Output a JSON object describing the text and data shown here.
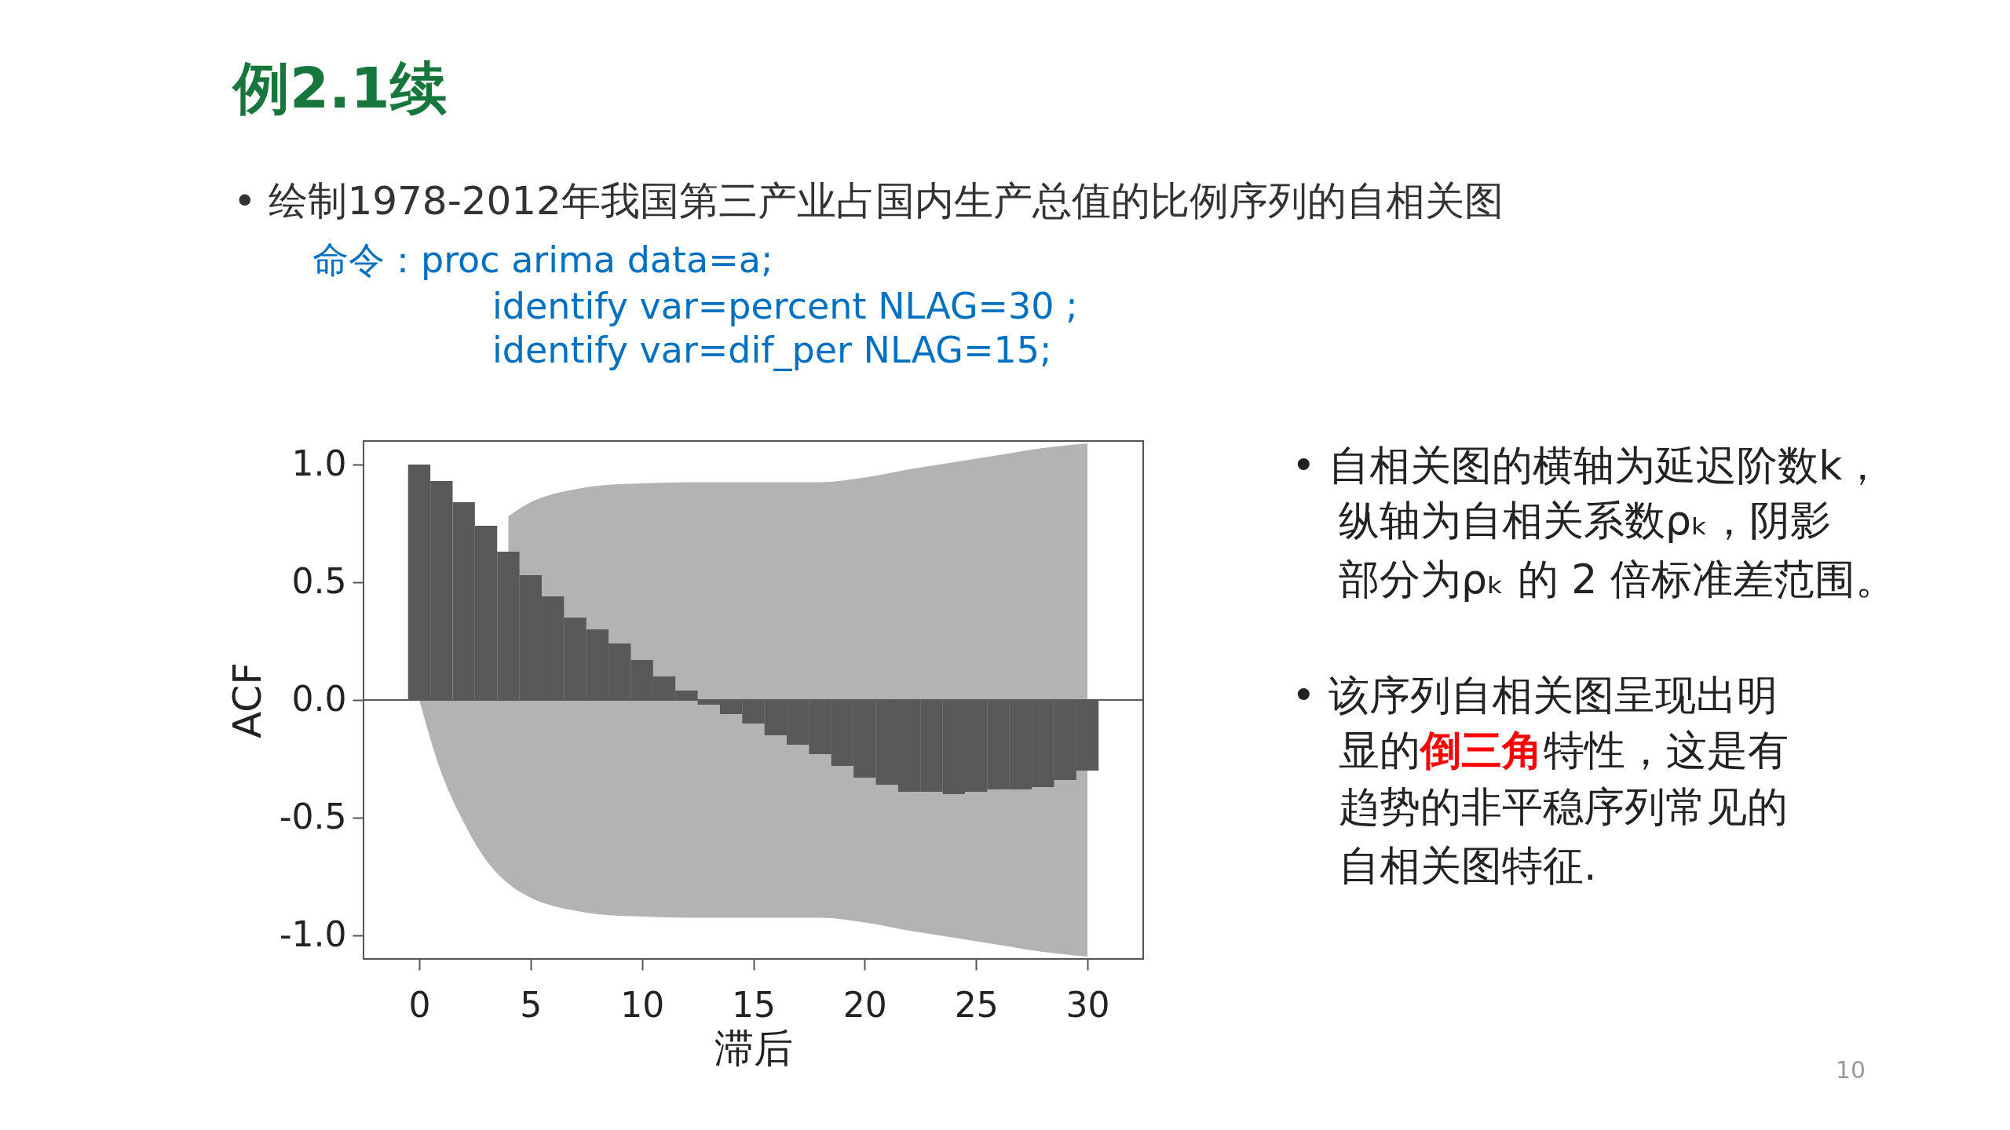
{
  "chart_data": {
    "type": "bar",
    "title": "例2.1续",
    "xlabel": "滞后",
    "ylabel": "ACF",
    "x": [
      0,
      1,
      2,
      3,
      4,
      5,
      6,
      7,
      8,
      9,
      10,
      11,
      12,
      13,
      14,
      15,
      16,
      17,
      18,
      19,
      20,
      21,
      22,
      23,
      24,
      25,
      26,
      27,
      28,
      29,
      30
    ],
    "series": [
      {
        "type": "area",
        "color": "#b3b3b3",
        "x": [
          4,
          5,
          6,
          7,
          8,
          10,
          12,
          14,
          16,
          18,
          20,
          22,
          24,
          26,
          28,
          30
        ],
        "values": [
          0.78,
          0.84,
          0.875,
          0.895,
          0.91,
          0.92,
          0.925,
          0.925,
          0.925,
          0.925,
          0.945,
          0.98,
          1.01,
          1.04,
          1.07,
          1.09
        ]
      },
      {
        "type": "area",
        "color": "#b3b3b3",
        "x": [
          0,
          1,
          2,
          3,
          4,
          5,
          6,
          7,
          8,
          10,
          12,
          14,
          16,
          18,
          20,
          22,
          24,
          26,
          28,
          30
        ],
        "values": [
          0,
          -0.31,
          -0.52,
          -0.68,
          -0.78,
          -0.84,
          -0.875,
          -0.895,
          -0.91,
          -0.92,
          -0.925,
          -0.925,
          -0.925,
          -0.925,
          -0.945,
          -0.98,
          -1.01,
          -1.04,
          -1.07,
          -1.09
        ]
      },
      {
        "color": "#595959",
        "values": [
          1.0,
          0.93,
          0.84,
          0.74,
          0.63,
          0.53,
          0.44,
          0.35,
          0.3,
          0.24,
          0.17,
          0.1,
          0.04,
          -0.02,
          -0.06,
          -0.1,
          -0.15,
          -0.19,
          -0.23,
          -0.28,
          -0.33,
          -0.36,
          -0.39,
          -0.39,
          -0.4,
          -0.39,
          -0.38,
          -0.38,
          -0.37,
          -0.34,
          -0.3
        ]
      }
    ],
    "ref_lines": [
      {
        "axis": "y",
        "value": 0,
        "color": "#595959"
      }
    ],
    "xlim": [
      -2.5,
      32.5
    ],
    "ylim": [
      -1.1,
      1.1
    ],
    "xticks": [
      0,
      5,
      10,
      15,
      20,
      25,
      30
    ],
    "yticks": [
      {
        "value": -1,
        "label": "-1.0"
      },
      {
        "value": -0.5,
        "label": "-0.5"
      },
      {
        "value": 0,
        "label": "0.0"
      },
      {
        "value": 0.5,
        "label": "0.5"
      },
      {
        "value": 1,
        "label": "1.0"
      }
    ],
    "grid": false,
    "annotations": [
      "• 绘制1978-2012年我国第三产业占国内生产总值的比例序列的自相关图",
      "命令：proc arima data=a;",
      "identify var=percent NLAG=30 ;",
      "identify var=dif_per NLAG=15;",
      "•  自相关图的横轴为延迟阶数k，",
      "纵轴为自相关系数ρₖ，阴影",
      "部分为ρₖ 的 2 倍标准差范围。",
      "•  该序列自相关图呈现出明",
      "显的",
      "倒三角",
      "特性，这是有",
      "趋势的非平稳序列常见的",
      "自相关图特征.",
      "10"
    ]
  }
}
